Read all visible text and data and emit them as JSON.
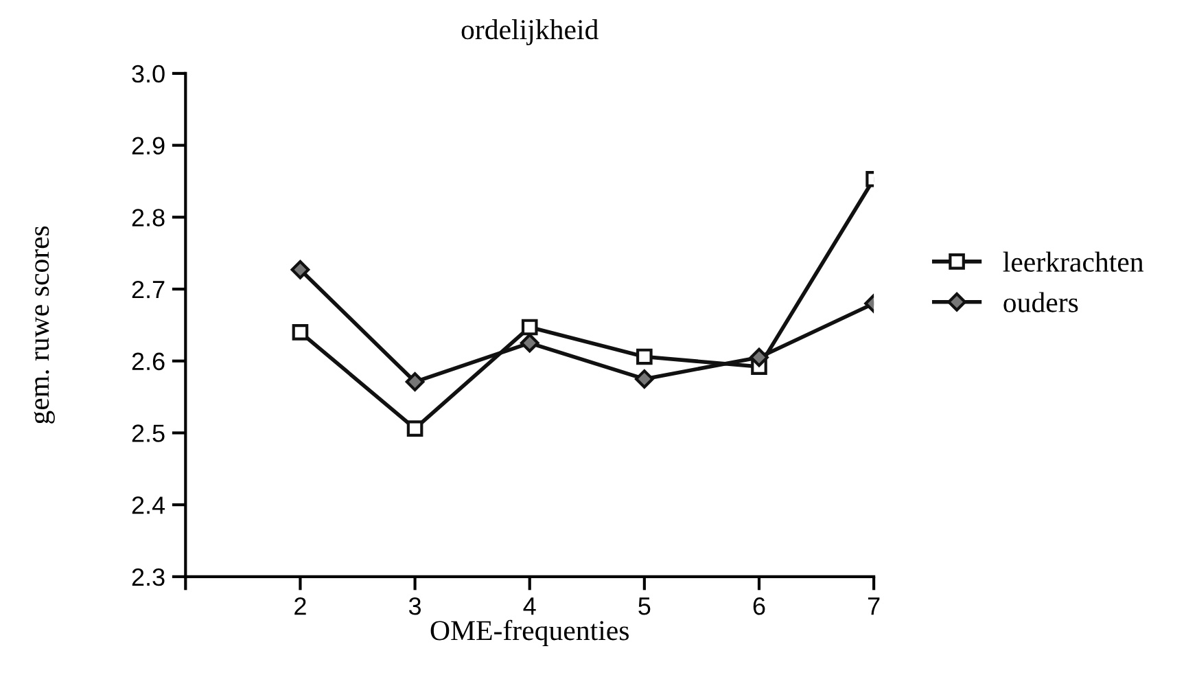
{
  "chart_data": {
    "type": "line",
    "title": "ordelijkheid",
    "xlabel": "OME-frequenties",
    "ylabel": "gem. ruwe scores",
    "x": [
      2,
      3,
      4,
      5,
      6,
      7
    ],
    "series": [
      {
        "name": "leerkrachten",
        "color": "#111111",
        "marker": "square",
        "values": [
          2.64,
          2.506,
          2.647,
          2.606,
          2.592,
          2.853
        ]
      },
      {
        "name": "ouders",
        "color": "#111111",
        "marker": "diamond",
        "values": [
          2.727,
          2.571,
          2.625,
          2.575,
          2.605,
          2.68
        ]
      }
    ],
    "xlim": [
      1,
      7
    ],
    "xticks": [
      {
        "value": 1,
        "label": null
      },
      2,
      3,
      4,
      5,
      6,
      7
    ],
    "ylim": [
      2.3,
      3.0
    ],
    "yticks": [
      {
        "value": 2.3,
        "label": "2.3"
      },
      {
        "value": 2.4,
        "label": "2.4"
      },
      {
        "value": 2.5,
        "label": "2.5"
      },
      {
        "value": 2.6,
        "label": "2.6"
      },
      {
        "value": 2.7,
        "label": "2.7"
      },
      {
        "value": 2.8,
        "label": "2.8"
      },
      {
        "value": 2.9,
        "label": "2.9"
      },
      {
        "value": 3.0,
        "label": "3.0"
      }
    ],
    "grid": false,
    "legend": "right",
    "line_style": "solid"
  }
}
